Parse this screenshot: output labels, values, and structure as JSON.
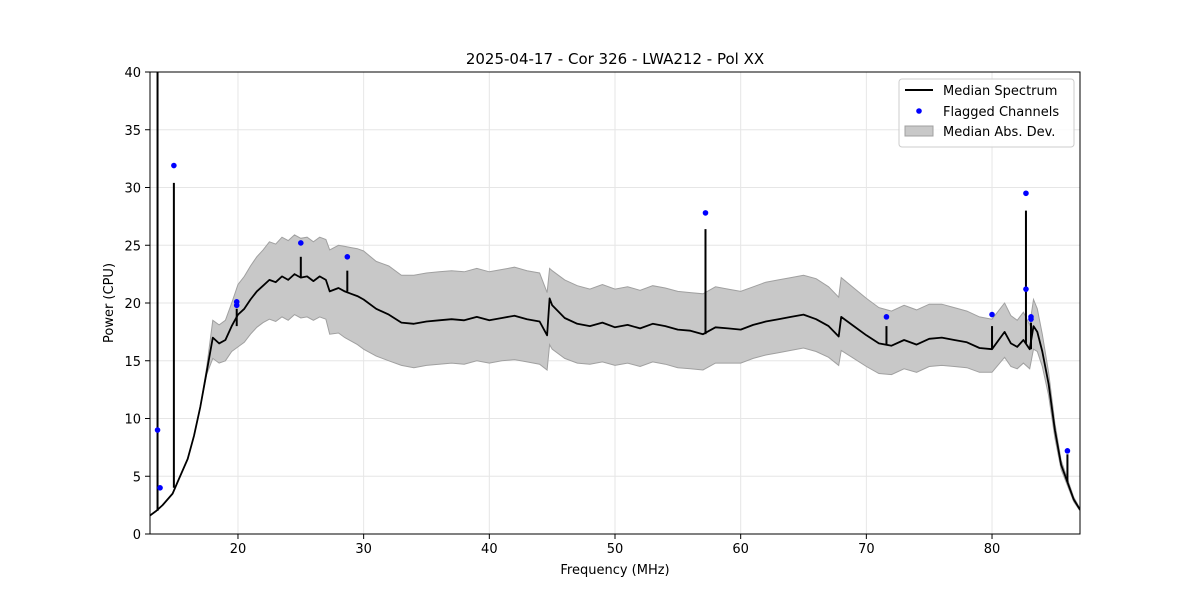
{
  "chart_data": {
    "type": "line",
    "title": "2025-04-17 - Cor 326 - LWA212 - Pol XX",
    "xlabel": "Frequency (MHz)",
    "ylabel": "Power (CPU)",
    "xlim": [
      13,
      87
    ],
    "ylim": [
      0,
      40
    ],
    "grid": true,
    "legend_position": "top-right",
    "x_ticks": [
      20,
      30,
      40,
      50,
      60,
      70,
      80
    ],
    "y_ticks": [
      0,
      5,
      10,
      15,
      20,
      25,
      30,
      35,
      40
    ],
    "colors": {
      "median": "#000000",
      "flagged": "#0000ff",
      "mad_fill": "#c8c8c8",
      "mad_edge": "#a0a0a0",
      "grid": "#e6e6e6"
    },
    "legend": [
      {
        "label": "Median Spectrum",
        "kind": "line"
      },
      {
        "label": "Flagged Channels",
        "kind": "dot"
      },
      {
        "label": "Median Abs. Dev.",
        "kind": "band"
      }
    ],
    "series": [
      {
        "name": "Median Spectrum",
        "x": [
          13.0,
          13.5,
          14.0,
          14.8,
          15.2,
          16.0,
          16.5,
          17.0,
          17.5,
          18.0,
          18.5,
          19.0,
          19.5,
          20.0,
          20.5,
          21.0,
          21.5,
          22.0,
          22.5,
          23.0,
          23.5,
          24.0,
          24.5,
          25.0,
          25.5,
          26.0,
          26.5,
          27.0,
          27.3,
          28.0,
          28.5,
          29.0,
          29.5,
          30.0,
          31.0,
          32.0,
          33.0,
          34.0,
          35.0,
          36.0,
          37.0,
          38.0,
          39.0,
          40.0,
          41.0,
          42.0,
          43.0,
          44.0,
          44.6,
          44.8,
          45.0,
          46.0,
          47.0,
          48.0,
          49.0,
          50.0,
          51.0,
          52.0,
          53.0,
          54.0,
          55.0,
          56.0,
          57.0,
          58.0,
          59.0,
          60.0,
          61.0,
          62.0,
          63.0,
          64.0,
          65.0,
          66.0,
          67.0,
          67.8,
          68.0,
          69.0,
          70.0,
          71.0,
          72.0,
          73.0,
          74.0,
          75.0,
          76.0,
          77.0,
          78.0,
          79.0,
          80.0,
          81.0,
          81.5,
          82.0,
          82.5,
          83.0,
          83.3,
          83.6,
          84.0,
          84.5,
          85.0,
          85.5,
          86.0,
          86.5,
          87.0
        ],
        "values": [
          1.6,
          2.0,
          2.5,
          3.5,
          4.5,
          6.5,
          8.5,
          11.0,
          14.0,
          17.0,
          16.5,
          16.8,
          18.0,
          19.0,
          19.5,
          20.3,
          21.0,
          21.5,
          22.0,
          21.8,
          22.3,
          22.0,
          22.5,
          22.2,
          22.3,
          21.9,
          22.3,
          22.0,
          21.0,
          21.3,
          21.0,
          20.8,
          20.6,
          20.3,
          19.5,
          19.0,
          18.3,
          18.2,
          18.4,
          18.5,
          18.6,
          18.5,
          18.8,
          18.5,
          18.7,
          18.9,
          18.6,
          18.4,
          17.2,
          20.4,
          19.8,
          18.7,
          18.2,
          18.0,
          18.3,
          17.9,
          18.1,
          17.8,
          18.2,
          18.0,
          17.7,
          17.6,
          17.3,
          17.9,
          17.8,
          17.7,
          18.1,
          18.4,
          18.6,
          18.8,
          19.0,
          18.6,
          18.0,
          17.1,
          18.8,
          18.0,
          17.2,
          16.5,
          16.3,
          16.8,
          16.4,
          16.9,
          17.0,
          16.8,
          16.6,
          16.1,
          16.0,
          17.5,
          16.5,
          16.2,
          16.8,
          16.0,
          18.0,
          17.5,
          15.8,
          13.0,
          9.0,
          6.0,
          4.5,
          3.0,
          2.1
        ],
        "mad_lower": [
          1.6,
          2.0,
          2.5,
          3.5,
          4.5,
          6.5,
          8.5,
          11.0,
          13.8,
          15.2,
          14.8,
          15.0,
          15.8,
          16.2,
          16.6,
          17.3,
          17.9,
          18.3,
          18.6,
          18.4,
          18.8,
          18.5,
          19.0,
          18.7,
          18.8,
          18.5,
          18.8,
          18.6,
          17.3,
          17.4,
          17.0,
          16.7,
          16.4,
          16.0,
          15.4,
          15.0,
          14.6,
          14.4,
          14.6,
          14.7,
          14.8,
          14.7,
          15.0,
          14.8,
          15.0,
          15.1,
          14.9,
          14.7,
          14.2,
          16.4,
          16.0,
          15.2,
          14.8,
          14.7,
          14.9,
          14.6,
          14.8,
          14.5,
          14.9,
          14.7,
          14.4,
          14.3,
          14.2,
          14.8,
          14.8,
          14.8,
          15.2,
          15.5,
          15.7,
          15.9,
          16.1,
          15.8,
          15.3,
          14.6,
          15.9,
          15.2,
          14.5,
          13.9,
          13.8,
          14.3,
          14.0,
          14.5,
          14.6,
          14.5,
          14.4,
          14.0,
          14.0,
          15.3,
          14.5,
          14.3,
          14.8,
          14.3,
          16.0,
          15.8,
          14.5,
          12.0,
          8.3,
          5.6,
          4.2,
          2.8,
          2.0
        ],
        "mad_upper": [
          1.6,
          2.0,
          2.5,
          3.5,
          4.5,
          6.5,
          8.5,
          11.0,
          14.4,
          18.5,
          18.1,
          18.5,
          20.0,
          21.6,
          22.3,
          23.2,
          24.0,
          24.6,
          25.3,
          25.1,
          25.7,
          25.4,
          25.9,
          25.6,
          25.7,
          25.3,
          25.7,
          25.5,
          24.6,
          25.0,
          24.9,
          24.8,
          24.7,
          24.5,
          23.6,
          23.2,
          22.4,
          22.4,
          22.6,
          22.7,
          22.8,
          22.7,
          23.0,
          22.7,
          22.9,
          23.1,
          22.8,
          22.6,
          20.9,
          23.0,
          22.8,
          22.0,
          21.5,
          21.2,
          21.6,
          21.2,
          21.4,
          21.1,
          21.5,
          21.3,
          21.0,
          20.9,
          20.8,
          21.4,
          21.2,
          21.0,
          21.4,
          21.8,
          22.0,
          22.2,
          22.4,
          22.1,
          21.4,
          20.5,
          22.2,
          21.3,
          20.4,
          19.6,
          19.3,
          19.8,
          19.4,
          19.9,
          19.9,
          19.6,
          19.3,
          18.8,
          18.6,
          20.0,
          18.9,
          18.5,
          19.2,
          18.1,
          20.3,
          19.5,
          17.3,
          14.0,
          9.6,
          6.4,
          4.8,
          3.2,
          2.2
        ]
      }
    ],
    "spikes": [
      {
        "x": 13.6,
        "base": 2.0,
        "top": 40.0
      },
      {
        "x": 14.9,
        "base": 4.0,
        "top": 30.4
      },
      {
        "x": 19.9,
        "base": 18.0,
        "top": 19.5
      },
      {
        "x": 25.0,
        "base": 22.2,
        "top": 24.0
      },
      {
        "x": 28.7,
        "base": 21.0,
        "top": 22.8
      },
      {
        "x": 57.2,
        "base": 17.3,
        "top": 26.4
      },
      {
        "x": 71.6,
        "base": 16.4,
        "top": 18.0
      },
      {
        "x": 80.0,
        "base": 16.0,
        "top": 18.0
      },
      {
        "x": 82.7,
        "base": 16.5,
        "top": 28.0
      },
      {
        "x": 83.1,
        "base": 16.0,
        "top": 18.3
      },
      {
        "x": 86.0,
        "base": 4.5,
        "top": 6.9
      }
    ],
    "flagged_channels": {
      "x": [
        13.6,
        13.8,
        14.9,
        19.9,
        19.9,
        25.0,
        28.7,
        57.2,
        71.6,
        80.0,
        82.7,
        82.7,
        83.1,
        83.1,
        86.0
      ],
      "y": [
        9.0,
        4.0,
        31.9,
        20.1,
        19.8,
        25.2,
        24.0,
        27.8,
        18.8,
        19.0,
        29.5,
        21.2,
        18.8,
        18.6,
        7.2
      ]
    }
  }
}
